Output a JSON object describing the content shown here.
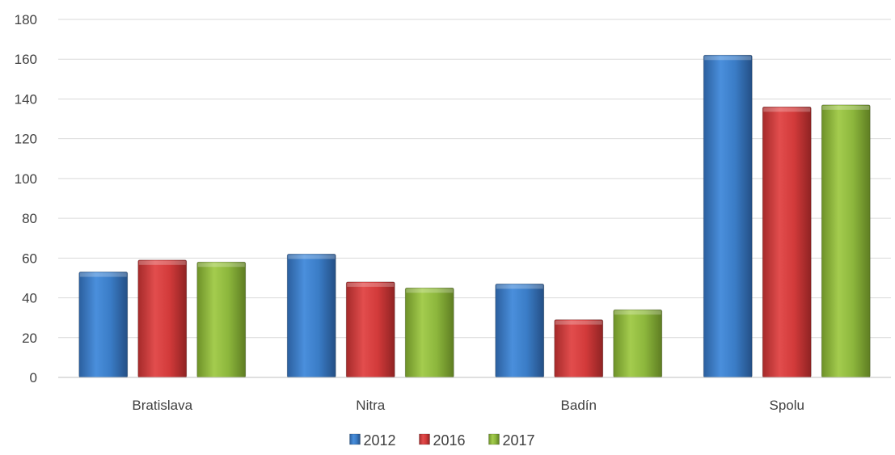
{
  "chart_data": {
    "type": "bar",
    "categories": [
      "Bratislava",
      "Nitra",
      "Badín",
      "Spolu"
    ],
    "series": [
      {
        "name": "2012",
        "values": [
          53,
          62,
          47,
          162
        ],
        "color": "#3a7cc6"
      },
      {
        "name": "2016",
        "values": [
          59,
          48,
          29,
          136
        ],
        "color": "#d23a3a"
      },
      {
        "name": "2017",
        "values": [
          58,
          45,
          34,
          137
        ],
        "color": "#8cb63c"
      }
    ],
    "ylim": [
      0,
      180
    ],
    "yticks": [
      0,
      20,
      40,
      60,
      80,
      100,
      120,
      140,
      160,
      180
    ],
    "grid": true,
    "legend_position": "bottom"
  }
}
